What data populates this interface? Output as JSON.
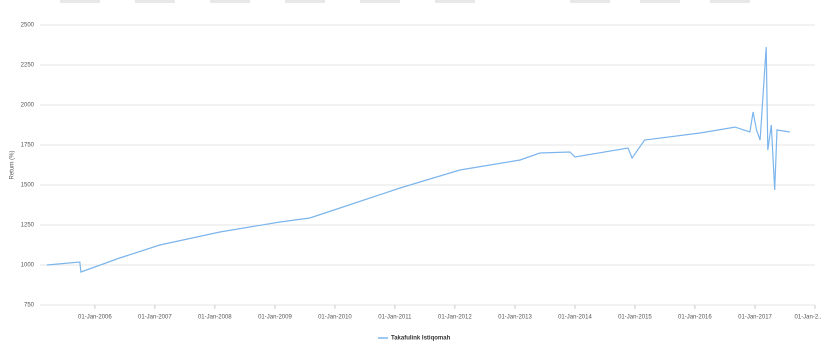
{
  "chart_data": {
    "type": "line",
    "y_label": "Return (%)",
    "x": [
      "2005-03-15",
      "2005-10-01",
      "2005-10-08",
      "2006-06-01",
      "2007-02-01",
      "2008-02-01",
      "2009-02-01",
      "2009-08-01",
      "2010-02-01",
      "2011-02-01",
      "2012-02-01",
      "2013-02-01",
      "2013-06-01",
      "2013-12-01",
      "2014-01-01",
      "2014-11-20",
      "2014-12-15",
      "2015-03-01",
      "2016-02-01",
      "2016-09-01",
      "2016-12-01",
      "2016-12-20",
      "2017-01-10",
      "2017-02-01",
      "2017-03-10",
      "2017-03-20",
      "2017-04-10",
      "2017-05-01",
      "2017-05-15",
      "2017-08-01"
    ],
    "series": [
      {
        "name": "Takafulink Istiqomah",
        "color": "#7cb5ec",
        "values": [
          1000,
          1019,
          956,
          1044,
          1125,
          1206,
          1269,
          1294,
          1356,
          1481,
          1594,
          1656,
          1700,
          1706,
          1675,
          1731,
          1669,
          1781,
          1825,
          1862,
          1831,
          1956,
          1844,
          1781,
          2362,
          1719,
          1875,
          1469,
          1844,
          1831
        ]
      }
    ],
    "xlim": [
      "2005-02-01",
      "2018-01-01"
    ],
    "xticks": [
      {
        "value": "2006-01-01",
        "label": "01-Jan-2006"
      },
      {
        "value": "2007-01-01",
        "label": "01-Jan-2007"
      },
      {
        "value": "2008-01-01",
        "label": "01-Jan-2008"
      },
      {
        "value": "2009-01-01",
        "label": "01-Jan-2009"
      },
      {
        "value": "2010-01-01",
        "label": "01-Jan-2010"
      },
      {
        "value": "2011-01-01",
        "label": "01-Jan-2011"
      },
      {
        "value": "2012-01-01",
        "label": "01-Jan-2012"
      },
      {
        "value": "2013-01-01",
        "label": "01-Jan-2013"
      },
      {
        "value": "2014-01-01",
        "label": "01-Jan-2014"
      },
      {
        "value": "2015-01-01",
        "label": "01-Jan-2015"
      },
      {
        "value": "2016-01-01",
        "label": "01-Jan-2016"
      },
      {
        "value": "2017-01-01",
        "label": "01-Jan-2017"
      },
      {
        "value": "2018-01-01",
        "label": "01-Jan-2.."
      }
    ],
    "ylim": [
      750,
      2500
    ],
    "yticks": [
      750,
      1000,
      1250,
      1500,
      1750,
      2000,
      2250,
      2500
    ],
    "grid": true
  }
}
